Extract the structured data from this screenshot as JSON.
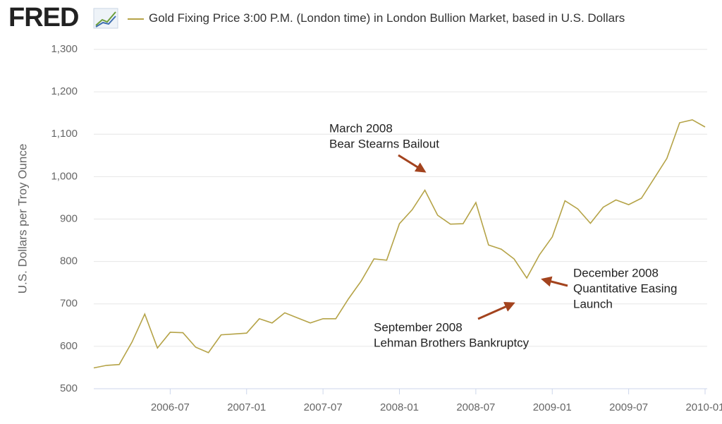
{
  "logo": "FRED",
  "chart_data": {
    "type": "line",
    "y_label": "U.S. Dollars per Troy Ounce",
    "x": [
      "2006-01",
      "2006-02",
      "2006-03",
      "2006-04",
      "2006-05",
      "2006-06",
      "2006-07",
      "2006-08",
      "2006-09",
      "2006-10",
      "2006-11",
      "2006-12",
      "2007-01",
      "2007-02",
      "2007-03",
      "2007-04",
      "2007-05",
      "2007-06",
      "2007-07",
      "2007-08",
      "2007-09",
      "2007-10",
      "2007-11",
      "2007-12",
      "2008-01",
      "2008-02",
      "2008-03",
      "2008-04",
      "2008-05",
      "2008-06",
      "2008-07",
      "2008-08",
      "2008-09",
      "2008-10",
      "2008-11",
      "2008-12",
      "2009-01",
      "2009-02",
      "2009-03",
      "2009-04",
      "2009-05",
      "2009-06",
      "2009-07",
      "2009-08",
      "2009-09",
      "2009-10",
      "2009-11",
      "2009-12",
      "2010-01"
    ],
    "series": [
      {
        "name": "Gold Fixing Price 3:00 P.M. (London time) in London Bullion Market, based in U.S. Dollars",
        "color": "#b5a347",
        "values": [
          549,
          555,
          557,
          610,
          676,
          596,
          633,
          632,
          598,
          585,
          627,
          629,
          631,
          665,
          655,
          679,
          667,
          655,
          665,
          665,
          712,
          754,
          806,
          803,
          889,
          922,
          968,
          909,
          888,
          889,
          939,
          839,
          829,
          806,
          761,
          816,
          858,
          943,
          924,
          890,
          928,
          945,
          934,
          949,
          996,
          1043,
          1127,
          1134,
          1117
        ]
      }
    ],
    "xlim": [
      "2006-01",
      "2010-01"
    ],
    "xticks": [
      "2006-07",
      "2007-01",
      "2007-07",
      "2008-01",
      "2008-07",
      "2009-01",
      "2009-07",
      "2010-01"
    ],
    "ylim": [
      500,
      1300
    ],
    "yticks": [
      500,
      600,
      700,
      800,
      900,
      {
        "value": 1000,
        "label": "1,000"
      },
      {
        "value": 1100,
        "label": "1,100"
      },
      {
        "value": 1200,
        "label": "1,200"
      },
      {
        "value": 1300,
        "label": "1,300"
      }
    ],
    "grid": true,
    "annotations": [
      {
        "lines": [
          "March 2008",
          "Bear Stearns Bailout"
        ]
      },
      {
        "lines": [
          "September 2008",
          "Lehman Brothers Bankruptcy"
        ]
      },
      {
        "lines": [
          "December 2008",
          "Quantitative Easing",
          "Launch"
        ]
      }
    ]
  }
}
